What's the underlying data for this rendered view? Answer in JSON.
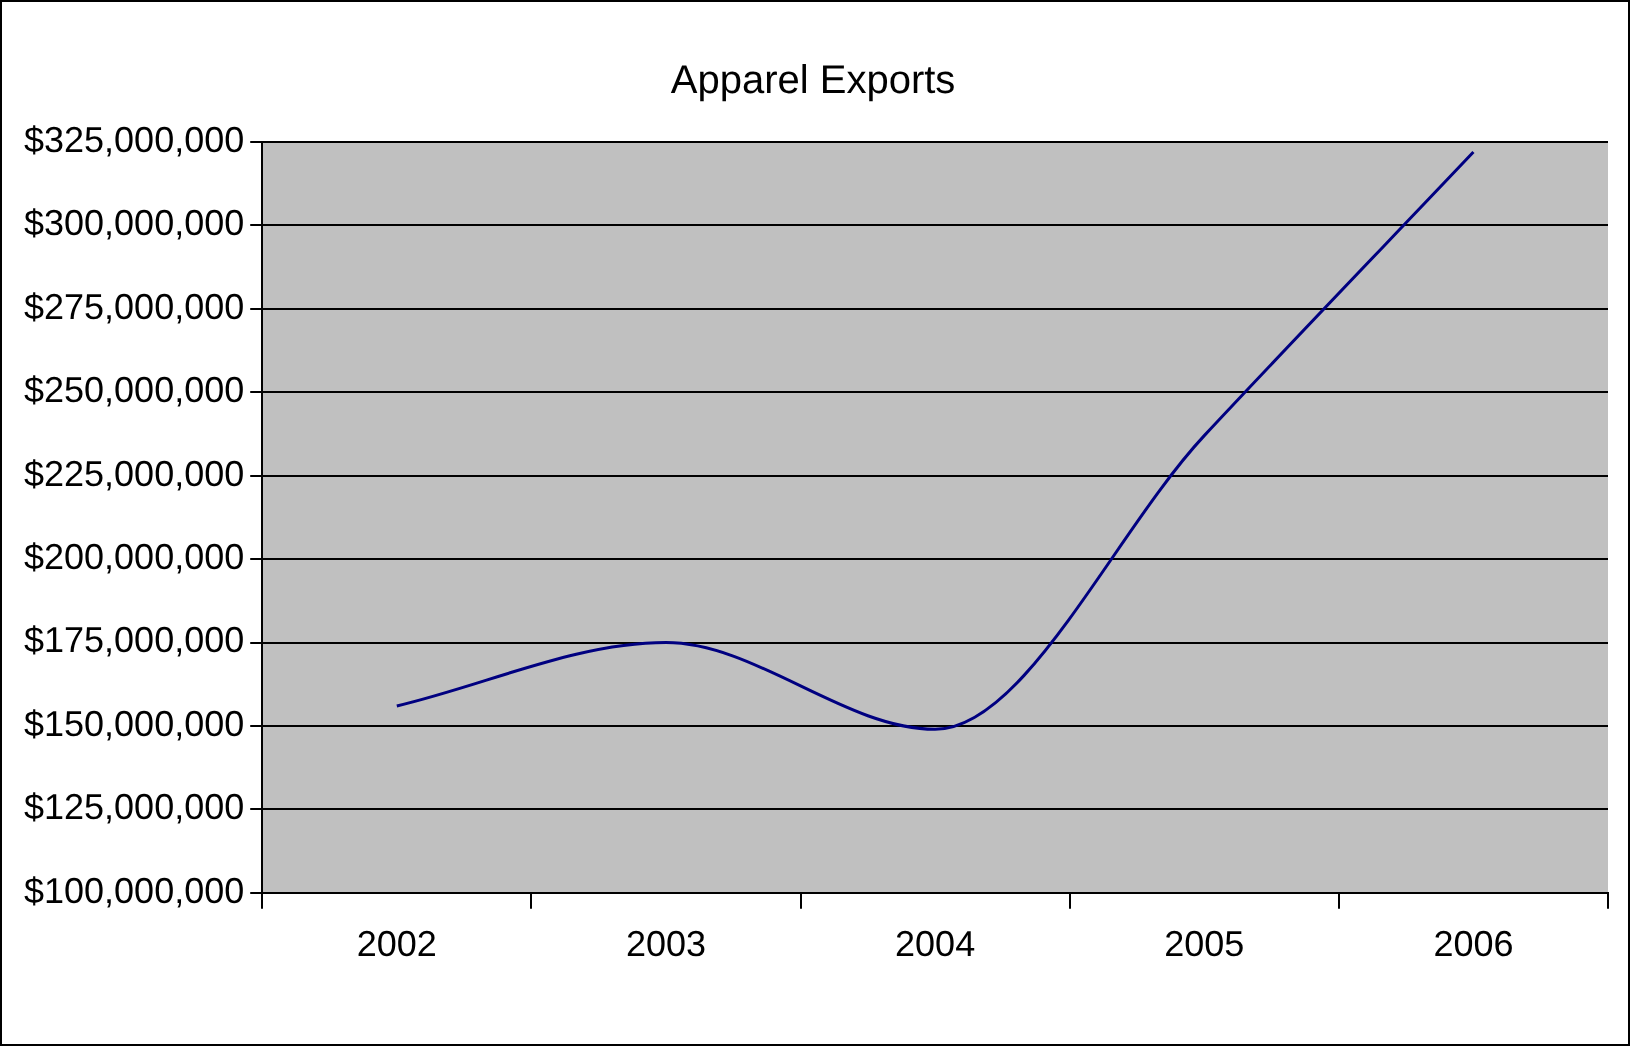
{
  "chart_data": {
    "type": "line",
    "title": "Apparel Exports",
    "categories": [
      "2002",
      "2003",
      "2004",
      "2005",
      "2006"
    ],
    "series": [
      {
        "color": "#000080",
        "values": [
          156000000,
          175000000,
          149000000,
          237000000,
          322000000
        ]
      }
    ],
    "ylim": [
      100000000,
      325000000
    ],
    "yticks": [
      {
        "value": 100000000,
        "label": "$100,000,000"
      },
      {
        "value": 125000000,
        "label": "$125,000,000"
      },
      {
        "value": 150000000,
        "label": "$150,000,000"
      },
      {
        "value": 175000000,
        "label": "$175,000,000"
      },
      {
        "value": 200000000,
        "label": "$200,000,000"
      },
      {
        "value": 225000000,
        "label": "$225,000,000"
      },
      {
        "value": 250000000,
        "label": "$250,000,000"
      },
      {
        "value": 275000000,
        "label": "$275,000,000"
      },
      {
        "value": 300000000,
        "label": "$300,000,000"
      },
      {
        "value": 325000000,
        "label": "$325,000,000"
      }
    ],
    "grid": "y",
    "legend": false,
    "marker": "none"
  }
}
